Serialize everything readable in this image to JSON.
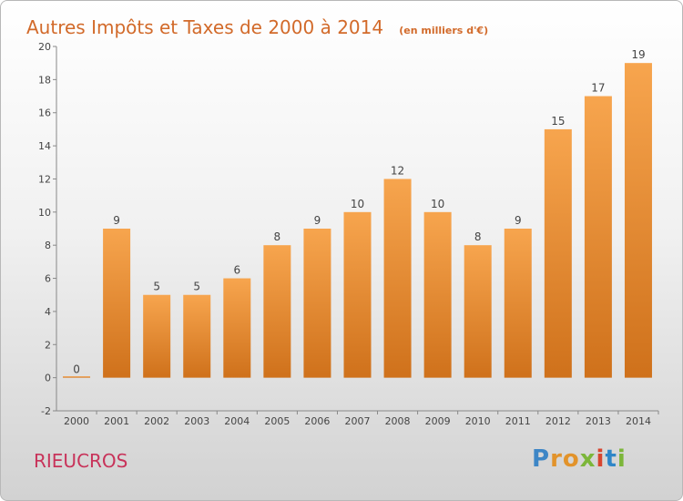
{
  "title": "Autres Impôts et Taxes de 2000 à 2014",
  "unit": "(en milliers d'€)",
  "commune": "RIEUCROS",
  "logo": {
    "letters": [
      "P",
      "r",
      "o",
      "x",
      "i",
      "t",
      "i"
    ],
    "colors": [
      "#3d86c6",
      "#e2932b",
      "#e2932b",
      "#7cb63a",
      "#d8452f",
      "#2f86c8",
      "#7cb63a"
    ]
  },
  "colors": {
    "bar_light": "#f7a54e",
    "bar_dark": "#cf711b",
    "axis": "#888888",
    "label": "#444444"
  },
  "chart_data": {
    "type": "bar",
    "categories": [
      "2000",
      "2001",
      "2002",
      "2003",
      "2004",
      "2005",
      "2006",
      "2007",
      "2008",
      "2009",
      "2010",
      "2011",
      "2012",
      "2013",
      "2014"
    ],
    "values": [
      0,
      9,
      5,
      5,
      6,
      8,
      9,
      10,
      12,
      10,
      8,
      9,
      15,
      17,
      19
    ],
    "ylim": [
      -2,
      20
    ],
    "yticks": [
      -2,
      0,
      2,
      4,
      6,
      8,
      10,
      12,
      14,
      16,
      18,
      20
    ],
    "grid": false,
    "xlabel": "",
    "ylabel": ""
  }
}
